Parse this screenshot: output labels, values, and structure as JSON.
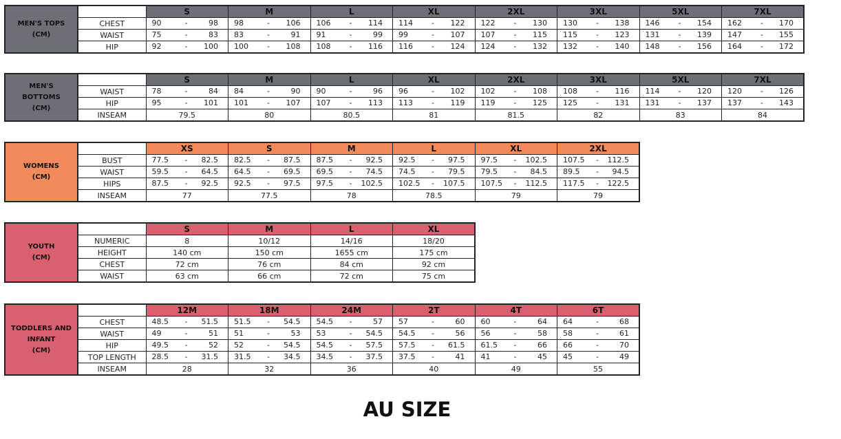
{
  "title": "AU SIZE",
  "tables": [
    {
      "label": [
        "MEN'S TOPS",
        "(CM)"
      ],
      "color": "#6c6f76",
      "sizes": [
        "S",
        "M",
        "L",
        "XL",
        "2XL",
        "3XL",
        "5XL",
        "7XL"
      ],
      "rows": [
        {
          "name": "CHEST",
          "values": [
            [
              "90",
              "98"
            ],
            [
              "98",
              "106"
            ],
            [
              "106",
              "114"
            ],
            [
              "114",
              "122"
            ],
            [
              "122",
              "130"
            ],
            [
              "130",
              "138"
            ],
            [
              "146",
              "154"
            ],
            [
              "162",
              "170"
            ]
          ]
        },
        {
          "name": "WAIST",
          "values": [
            [
              "75",
              "83"
            ],
            [
              "83",
              "91"
            ],
            [
              "91",
              "99"
            ],
            [
              "99",
              "107"
            ],
            [
              "107",
              "115"
            ],
            [
              "115",
              "123"
            ],
            [
              "131",
              "139"
            ],
            [
              "147",
              "155"
            ]
          ]
        },
        {
          "name": "HIP",
          "values": [
            [
              "92",
              "100"
            ],
            [
              "100",
              "108"
            ],
            [
              "108",
              "116"
            ],
            [
              "116",
              "124"
            ],
            [
              "124",
              "132"
            ],
            [
              "132",
              "140"
            ],
            [
              "148",
              "156"
            ],
            [
              "164",
              "172"
            ]
          ]
        }
      ]
    },
    {
      "label": [
        "MEN'S",
        "BOTTOMS",
        "(CM)"
      ],
      "color": "#6c6f76",
      "sizes": [
        "S",
        "M",
        "L",
        "XL",
        "2XL",
        "3XL",
        "5XL",
        "7XL"
      ],
      "rows": [
        {
          "name": "WAIST",
          "values": [
            [
              "78",
              "84"
            ],
            [
              "84",
              "90"
            ],
            [
              "90",
              "96"
            ],
            [
              "96",
              "102"
            ],
            [
              "102",
              "108"
            ],
            [
              "108",
              "116"
            ],
            [
              "114",
              "120"
            ],
            [
              "120",
              "126"
            ]
          ]
        },
        {
          "name": "HIP",
          "values": [
            [
              "95",
              "101"
            ],
            [
              "101",
              "107"
            ],
            [
              "107",
              "113"
            ],
            [
              "113",
              "119"
            ],
            [
              "119",
              "125"
            ],
            [
              "125",
              "131"
            ],
            [
              "131",
              "137"
            ],
            [
              "137",
              "143"
            ]
          ]
        },
        {
          "name": "INSEAM",
          "values": [
            "79.5",
            "80",
            "80.5",
            "81",
            "81.5",
            "82",
            "83",
            "84"
          ]
        }
      ]
    },
    {
      "label": [
        "WOMENS",
        "(CM)"
      ],
      "color": "#f28a5c",
      "sizes": [
        "XS",
        "S",
        "M",
        "L",
        "XL",
        "2XL"
      ],
      "rows": [
        {
          "name": "BUST",
          "values": [
            [
              "77.5",
              "82.5"
            ],
            [
              "82.5",
              "87.5"
            ],
            [
              "87.5",
              "92.5"
            ],
            [
              "92.5",
              "97.5"
            ],
            [
              "97.5",
              "102.5"
            ],
            [
              "107.5",
              "112.5"
            ]
          ]
        },
        {
          "name": "WAIST",
          "values": [
            [
              "59.5",
              "64.5"
            ],
            [
              "64.5",
              "69.5"
            ],
            [
              "69.5",
              "74.5"
            ],
            [
              "74.5",
              "79.5"
            ],
            [
              "79.5",
              "84.5"
            ],
            [
              "89.5",
              "94.5"
            ]
          ]
        },
        {
          "name": "HIPS",
          "values": [
            [
              "87.5",
              "92.5"
            ],
            [
              "92.5",
              "97.5"
            ],
            [
              "97.5",
              "102.5"
            ],
            [
              "102.5",
              "107.5"
            ],
            [
              "107.5",
              "112.5"
            ],
            [
              "117.5",
              "122.5"
            ]
          ]
        },
        {
          "name": "INSEAM",
          "values": [
            "77",
            "77.5",
            "78",
            "78.5",
            "79",
            "79"
          ]
        }
      ]
    },
    {
      "label": [
        "YOUTH",
        "(CM)"
      ],
      "color": "#d9606f",
      "sizes": [
        "S",
        "M",
        "L",
        "XL"
      ],
      "rows": [
        {
          "name": "NUMERIC",
          "values": [
            "8",
            "10/12",
            "14/16",
            "18/20"
          ]
        },
        {
          "name": "HEIGHT",
          "values": [
            "140 cm",
            "150 cm",
            "1655 cm",
            "175 cm"
          ]
        },
        {
          "name": "CHEST",
          "values": [
            "72 cm",
            "76 cm",
            "84 cm",
            "92 cm"
          ]
        },
        {
          "name": "WAIST",
          "values": [
            "63 cm",
            "66 cm",
            "72 cm",
            "75 cm"
          ]
        }
      ]
    },
    {
      "label": [
        "TODDLERS AND",
        "INFANT",
        "(CM)"
      ],
      "color": "#d9606f",
      "sizes": [
        "12M",
        "18M",
        "24M",
        "2T",
        "4T",
        "6T"
      ],
      "rows": [
        {
          "name": "CHEST",
          "values": [
            [
              "48.5",
              "51.5"
            ],
            [
              "51.5",
              "54.5"
            ],
            [
              "54.5",
              "57"
            ],
            [
              "57",
              "60"
            ],
            [
              "60",
              "64"
            ],
            [
              "64",
              "68"
            ]
          ]
        },
        {
          "name": "WAIST",
          "values": [
            [
              "49",
              "51"
            ],
            [
              "51",
              "53"
            ],
            [
              "53",
              "54.5"
            ],
            [
              "54.5",
              "56"
            ],
            [
              "56",
              "58"
            ],
            [
              "58",
              "61"
            ]
          ]
        },
        {
          "name": "HIP",
          "values": [
            [
              "49.5",
              "52"
            ],
            [
              "52",
              "54.5"
            ],
            [
              "54.5",
              "57.5"
            ],
            [
              "57.5",
              "61.5"
            ],
            [
              "61.5",
              "66"
            ],
            [
              "66",
              "70"
            ]
          ]
        },
        {
          "name": "TOP LENGTH",
          "values": [
            [
              "28.5",
              "31.5"
            ],
            [
              "31.5",
              "34.5"
            ],
            [
              "34.5",
              "37.5"
            ],
            [
              "37.5",
              "41"
            ],
            [
              "41",
              "45"
            ],
            [
              "45",
              "49"
            ]
          ]
        },
        {
          "name": "INSEAM",
          "values": [
            "28",
            "32",
            "36",
            "40",
            "49",
            "55"
          ]
        }
      ]
    }
  ]
}
